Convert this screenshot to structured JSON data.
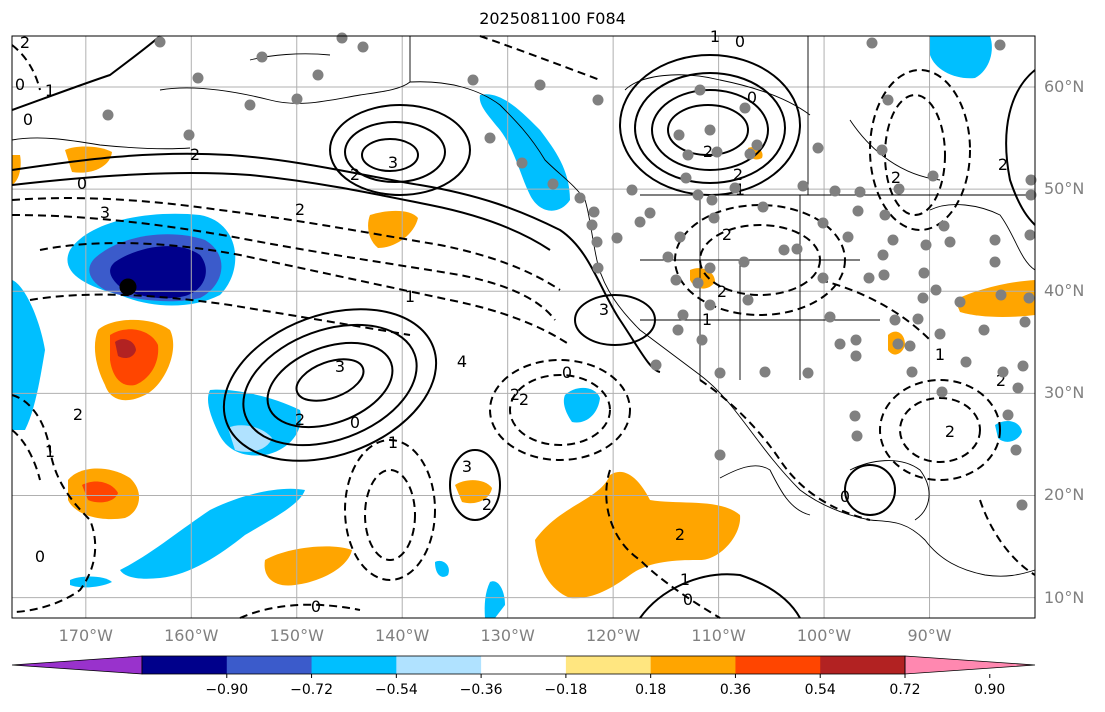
{
  "title": "2025081100 F084",
  "map": {
    "extent": {
      "lon": [
        -177,
        -80
      ],
      "lat": [
        8,
        65
      ]
    },
    "lon_labels": [
      "170°W",
      "160°W",
      "150°W",
      "140°W",
      "130°W",
      "120°W",
      "110°W",
      "100°W",
      "90°W"
    ],
    "lat_labels": [
      "60°N",
      "50°N",
      "40°N",
      "30°N",
      "20°N",
      "10°N"
    ],
    "contour_labels": [
      "2",
      "0",
      "1",
      "0",
      "3",
      "2",
      "3",
      "2",
      "0",
      "2",
      "1",
      "3",
      "2",
      "1",
      "0",
      "4",
      "3",
      "2",
      "2",
      "0",
      "2",
      "1",
      "2",
      "1",
      "3",
      "2",
      "0",
      "2",
      "2",
      "1",
      "2",
      "0",
      "2",
      "2",
      "1",
      "0",
      "1",
      "0",
      "0",
      "2",
      "2",
      "2",
      "1",
      "0"
    ]
  },
  "colorbar": {
    "tick_labels": [
      "−0.90",
      "−0.72",
      "−0.54",
      "−0.36",
      "−0.18",
      "0.18",
      "0.36",
      "0.54",
      "0.72",
      "0.90"
    ],
    "colors": [
      "#9932cc",
      "#00008b",
      "#3b5bcb",
      "#00bfff",
      "#b0e2ff",
      "#ffffff",
      "#ffe680",
      "#ffa500",
      "#ff4500",
      "#b22222",
      "#ff88b0"
    ]
  }
}
